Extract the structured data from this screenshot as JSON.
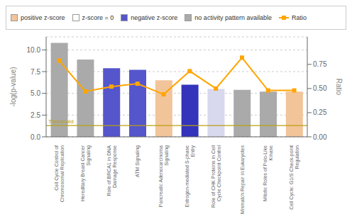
{
  "chart_data": {
    "type": "bar",
    "categories": [
      "Cell Cycle Control of\nChromosomal Replication",
      "Hereditary Breast Cancer\nSignaling",
      "Role of BRCA1 in DNA\nDamage Response",
      "ATM Signaling",
      "Pancreatic Adenocarcinoma\nSignaling",
      "Estrogen-mediated S-phase\nEntry",
      "Role of CHK Proteins in Cell\nCycle Checkpoint Control",
      "Mismatch Repair in Eukaryotes",
      "Mitotic Roles of Polo-Like\nKinase",
      "Cell Cycle: G1/S Check-point\nRegulation"
    ],
    "series": [
      {
        "type": "bar",
        "colors": [
          "#aaaaaa",
          "#aaaaaa",
          "#5555cc",
          "#5555cc",
          "#f2c49a",
          "#3333bb",
          "#d8d8ee",
          "#aaaaaa",
          "#aaaaaa",
          "#f2c49a"
        ],
        "values": [
          10.8,
          8.9,
          7.9,
          7.7,
          6.5,
          6.0,
          5.5,
          5.4,
          5.2,
          5.2
        ]
      },
      {
        "name": "Ratio",
        "type": "line",
        "color": "#FFA500",
        "marker": "square",
        "axis": "y2",
        "values": [
          0.79,
          0.47,
          0.52,
          0.55,
          0.44,
          0.68,
          0.5,
          0.82,
          0.48,
          0.48
        ]
      }
    ],
    "ylabel": "-log(p-value)",
    "y2label": "Ratio",
    "ylim": [
      0,
      11.5
    ],
    "yticks": [
      {
        "value": 0,
        "label": "0.0"
      },
      2.5,
      {
        "value": 5,
        "label": "5.0"
      },
      7.5,
      {
        "value": 10,
        "label": "10.0"
      }
    ],
    "y2lim": [
      0,
      1.035
    ],
    "y2ticks": [
      {
        "value": 0,
        "label": "0.00"
      },
      0.25,
      {
        "value": 0.5,
        "label": "0.50"
      },
      0.75
    ],
    "grid": true,
    "legend": "top",
    "legend_entries": [
      {
        "label": "positive z-score",
        "color": "#f2c49a",
        "type": "bar"
      },
      {
        "label": "z-score = 0",
        "color": "#ffffff",
        "type": "bar"
      },
      {
        "label": "negative z-score",
        "color": "#5555cc",
        "type": "bar"
      },
      {
        "label": "no activity pattern available",
        "color": "#aaaaaa",
        "type": "bar"
      },
      {
        "label": "Ratio",
        "color": "#FFA500",
        "type": "line"
      }
    ],
    "annotations": [
      {
        "text": "Threshold",
        "y": 1.3,
        "color": "#b8a010"
      }
    ]
  }
}
